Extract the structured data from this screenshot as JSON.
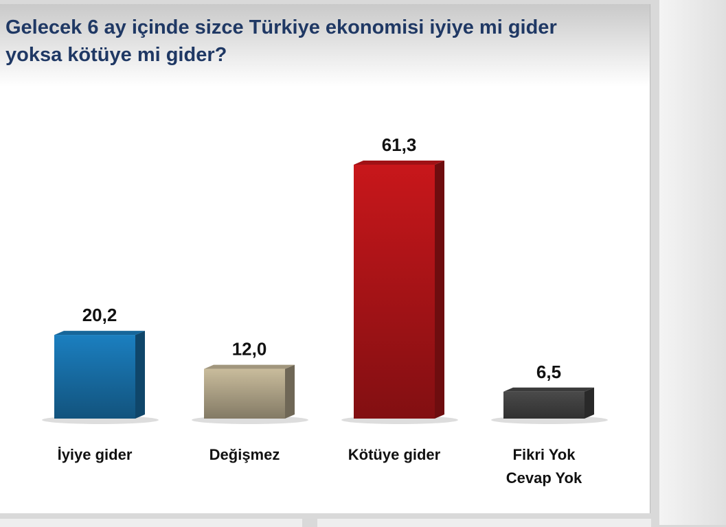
{
  "chart_data": {
    "type": "bar3d",
    "title": "Gelecek 6 ay içinde sizce Türkiye ekonomisi iyiye mi gider yoksa kötüye mi gider?",
    "categories": [
      "İyiye gider",
      "Değişmez",
      "Kötüye gider",
      "Fikri Yok\nCevap Yok"
    ],
    "values": [
      20.2,
      12.0,
      61.3,
      6.5
    ],
    "value_labels": [
      "20,2",
      "12,0",
      "61,3",
      "6,5"
    ],
    "colors": [
      "#1b7fc0",
      "#c9bc9c",
      "#c8171b",
      "#4a4a4a"
    ]
  }
}
